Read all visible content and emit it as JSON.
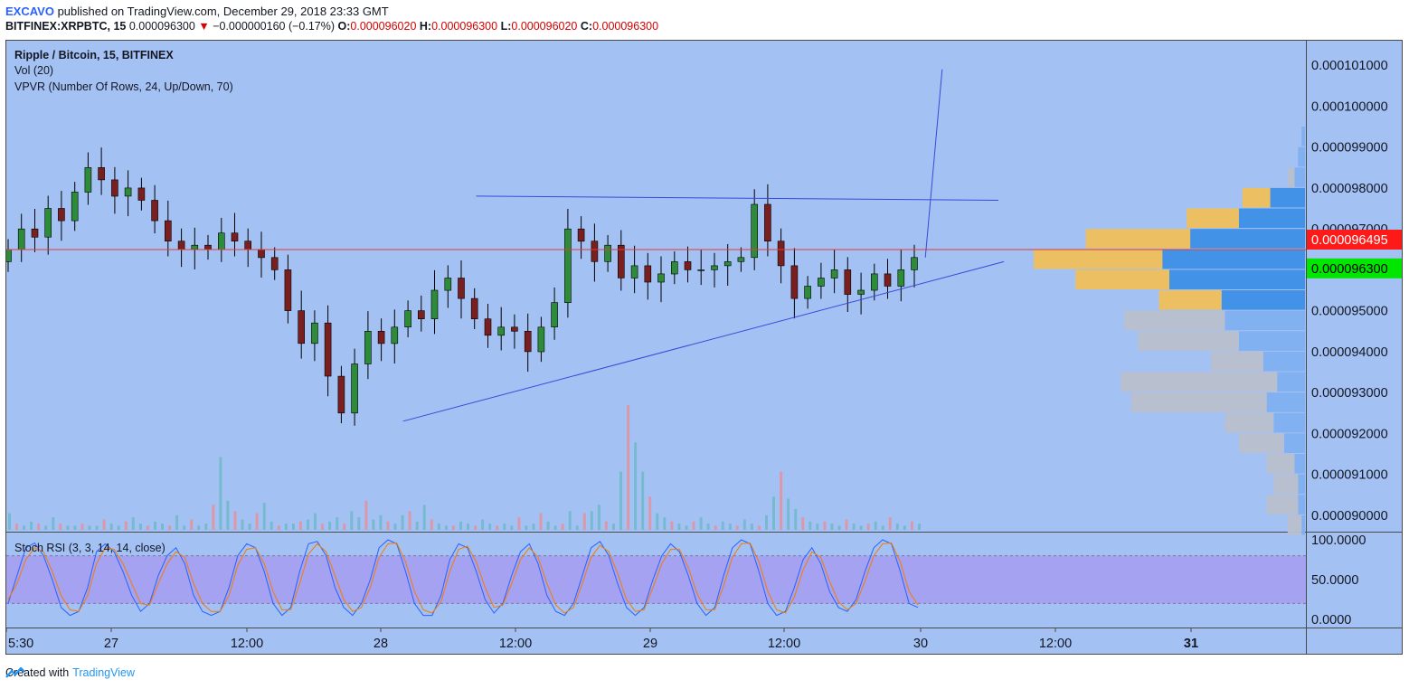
{
  "header": {
    "author": "EXCAVO",
    "published_text": "published on TradingView.com, December 29, 2018 23:33 GMT",
    "symbol": "BITFINEX:XRPBTC, 15",
    "last_price": "0.000096300",
    "change_arrow": "▼",
    "change": "−0.000000160 (−0.17%)",
    "o_label": "O:",
    "o_value": "0.000096020",
    "h_label": "H:",
    "h_value": "0.000096300",
    "l_label": "L:",
    "l_value": "0.000096020",
    "c_label": "C:",
    "c_value": "0.000096300"
  },
  "legend": {
    "main": "Ripple / Bitcoin, 15, BITFINEX",
    "vol": "Vol (20)",
    "vpvr": "VPVR (Number Of Rows, 24, Up/Down, 70)",
    "stoch": "Stoch RSI (3, 3, 14, 14, close)"
  },
  "footer": {
    "created_with": "Created with",
    "brand": "TradingView"
  },
  "colors": {
    "background": "#a4c1f4",
    "up_candle": "#2e8b3a",
    "down_candle": "#7a1f1f",
    "trendline": "#3a49d6",
    "price_line": "#e53935",
    "stoch_band": "#a49cf0",
    "stoch_k": "#2962ff",
    "stoch_d": "#f57c00",
    "vpvr_up": "#3d8fe6",
    "vpvr_down": "#f0c05a",
    "vpvr_grey": "#b9bfcc",
    "last_price_tag": "#00e600",
    "current_line_tag": "#ff1a1a"
  },
  "chart_data": [
    {
      "type": "candlestick",
      "title": "Ripple / Bitcoin, 15, BITFINEX",
      "y_ticks": [
        "0.000101000",
        "0.000100000",
        "0.000099000",
        "0.000098000",
        "0.000097000",
        "0.000096000",
        "0.000095000",
        "0.000094000",
        "0.000093000",
        "0.000092000",
        "0.000091000",
        "0.000090000"
      ],
      "x_ticks": [
        "5:30",
        "27",
        "12:00",
        "28",
        "12:00",
        "29",
        "12:00",
        "30",
        "12:00",
        "31"
      ],
      "ylim": [
        8.96e-05,
        0.0001016
      ],
      "price_tags": [
        {
          "label": "0.000096495",
          "value": 9.6495e-05,
          "role": "horizontal line"
        },
        {
          "label": "0.000096300",
          "value": 9.63e-05,
          "role": "last price"
        }
      ],
      "close_series": [
        9.65e-05,
        9.7e-05,
        9.68e-05,
        9.75e-05,
        9.72e-05,
        9.79e-05,
        9.85e-05,
        9.82e-05,
        9.78e-05,
        9.8e-05,
        9.77e-05,
        9.72e-05,
        9.67e-05,
        9.65e-05,
        9.66e-05,
        9.65e-05,
        9.69e-05,
        9.67e-05,
        9.65e-05,
        9.63e-05,
        9.6e-05,
        9.5e-05,
        9.42e-05,
        9.47e-05,
        9.34e-05,
        9.25e-05,
        9.37e-05,
        9.45e-05,
        9.42e-05,
        9.46e-05,
        9.5e-05,
        9.48e-05,
        9.55e-05,
        9.58e-05,
        9.53e-05,
        9.48e-05,
        9.44e-05,
        9.46e-05,
        9.45e-05,
        9.4e-05,
        9.46e-05,
        9.52e-05,
        9.7e-05,
        9.67e-05,
        9.62e-05,
        9.66e-05,
        9.58e-05,
        9.61e-05,
        9.57e-05,
        9.59e-05,
        9.62e-05,
        9.6e-05,
        9.6e-05,
        9.61e-05,
        9.62e-05,
        9.63e-05,
        9.76e-05,
        9.67e-05,
        9.61e-05,
        9.53e-05,
        9.56e-05,
        9.58e-05,
        9.6e-05,
        9.54e-05,
        9.55e-05,
        9.59e-05,
        9.56e-05,
        9.6e-05,
        9.63e-05
      ],
      "trendlines": [
        {
          "name": "ascending support",
          "from": {
            "x": "28 02:00",
            "y": 9.23e-05
          },
          "to": {
            "x": "30 07:30",
            "y": 9.62e-05
          }
        },
        {
          "name": "resistance",
          "from": {
            "x": "28 08:30",
            "y": 9.78e-05
          },
          "to": {
            "x": "30 07:00",
            "y": 9.77e-05
          }
        },
        {
          "name": "breakout projection",
          "from": {
            "x": "30 00:30",
            "y": 9.63e-05
          },
          "to": {
            "x": "30 02:00",
            "y": 0.0001009
          }
        }
      ]
    },
    {
      "type": "bar",
      "title": "Vol (20)",
      "values": [
        8,
        3,
        2,
        4,
        3,
        2,
        6,
        3,
        2,
        2,
        3,
        2,
        2,
        5,
        3,
        2,
        4,
        6,
        3,
        2,
        4,
        3,
        2,
        7,
        2,
        5,
        2,
        3,
        12,
        35,
        14,
        9,
        5,
        3,
        8,
        13,
        4,
        2,
        3,
        3,
        4,
        5,
        8,
        3,
        4,
        6,
        3,
        9,
        6,
        14,
        5,
        7,
        4,
        3,
        7,
        9,
        4,
        12,
        5,
        3,
        2,
        2,
        4,
        3,
        2,
        5,
        3,
        2,
        3,
        2,
        6,
        2,
        3,
        8,
        4,
        2,
        3,
        9,
        2,
        8,
        9,
        12,
        4,
        3,
        28,
        60,
        42,
        28,
        16,
        8,
        6,
        4,
        3,
        2,
        4,
        6,
        3,
        2,
        4,
        3,
        2,
        5,
        3,
        2,
        7,
        16,
        28,
        15,
        10,
        6,
        4,
        3,
        4,
        3,
        2,
        5,
        3,
        2,
        3,
        4,
        2,
        6,
        3,
        2,
        4,
        3
      ]
    },
    {
      "type": "line",
      "title": "Stoch RSI (3, 3, 14, 14, close)",
      "y_ticks": [
        "100.0000",
        "50.0000",
        "0.0000"
      ],
      "ylim": [
        0,
        100
      ],
      "bands": [
        20,
        80
      ],
      "series": [
        {
          "values": [
            20,
            55,
            90,
            96,
            80,
            50,
            15,
            5,
            10,
            40,
            85,
            95,
            85,
            60,
            30,
            10,
            20,
            55,
            80,
            90,
            70,
            30,
            10,
            5,
            10,
            40,
            80,
            95,
            90,
            60,
            20,
            5,
            15,
            60,
            95,
            98,
            80,
            40,
            15,
            5,
            20,
            50,
            90,
            100,
            95,
            60,
            20,
            5,
            5,
            30,
            75,
            95,
            90,
            60,
            25,
            8,
            20,
            55,
            85,
            95,
            70,
            30,
            10,
            5,
            20,
            55,
            90,
            98,
            80,
            45,
            15,
            5,
            15,
            50,
            80,
            95,
            85,
            55,
            20,
            5,
            15,
            55,
            90,
            100,
            95,
            60,
            20,
            5,
            10,
            40,
            75,
            90,
            70,
            35,
            15,
            10,
            25,
            60,
            90,
            100,
            95,
            60,
            20,
            15
          ]
        },
        {
          "values": [
            25,
            45,
            75,
            90,
            85,
            60,
            30,
            12,
            10,
            30,
            70,
            90,
            88,
            70,
            45,
            20,
            18,
            45,
            70,
            85,
            78,
            45,
            20,
            10,
            10,
            30,
            68,
            88,
            90,
            70,
            35,
            12,
            12,
            45,
            82,
            95,
            85,
            55,
            25,
            10,
            15,
            40,
            78,
            95,
            96,
            72,
            35,
            12,
            8,
            22,
            60,
            88,
            92,
            72,
            40,
            15,
            18,
            45,
            75,
            90,
            78,
            45,
            18,
            8,
            15,
            45,
            78,
            93,
            85,
            58,
            25,
            10,
            12,
            40,
            70,
            88,
            88,
            65,
            32,
            12,
            12,
            42,
            78,
            95,
            96,
            72,
            35,
            12,
            8,
            28,
            62,
            85,
            78,
            48,
            22,
            12,
            20,
            48,
            80,
            95,
            96,
            72,
            35,
            18
          ]
        }
      ]
    },
    {
      "type": "bar",
      "title": "VPVR (Number Of Rows, 24, Up/Down, 70)",
      "note": "horizontal volume profile by price level",
      "levels": [
        {
          "price_from": 9.9e-05,
          "price_to": 9.95e-05,
          "up": 1,
          "down": 0
        },
        {
          "price_from": 9.85e-05,
          "price_to": 9.9e-05,
          "up": 2,
          "down": 0
        },
        {
          "price_from": 9.8e-05,
          "price_to": 9.85e-05,
          "up": 3,
          "down": 2
        },
        {
          "price_from": 9.75e-05,
          "price_to": 9.8e-05,
          "up": 10,
          "down": 8
        },
        {
          "price_from": 9.7e-05,
          "price_to": 9.75e-05,
          "up": 19,
          "down": 15
        },
        {
          "price_from": 9.65e-05,
          "price_to": 9.7e-05,
          "up": 33,
          "down": 30
        },
        {
          "price_from": 9.6e-05,
          "price_to": 9.65e-05,
          "up": 41,
          "down": 37
        },
        {
          "price_from": 9.55e-05,
          "price_to": 9.6e-05,
          "up": 39,
          "down": 27
        },
        {
          "price_from": 9.5e-05,
          "price_to": 9.55e-05,
          "up": 24,
          "down": 18
        },
        {
          "price_from": 9.45e-05,
          "price_to": 9.5e-05,
          "up": 23,
          "down": 29
        },
        {
          "price_from": 9.4e-05,
          "price_to": 9.45e-05,
          "up": 19,
          "down": 29
        },
        {
          "price_from": 9.35e-05,
          "price_to": 9.4e-05,
          "up": 12,
          "down": 15
        },
        {
          "price_from": 9.3e-05,
          "price_to": 9.35e-05,
          "up": 8,
          "down": 45
        },
        {
          "price_from": 9.25e-05,
          "price_to": 9.3e-05,
          "up": 11,
          "down": 39
        },
        {
          "price_from": 9.2e-05,
          "price_to": 9.25e-05,
          "up": 9,
          "down": 14
        },
        {
          "price_from": 9.15e-05,
          "price_to": 9.2e-05,
          "up": 6,
          "down": 13
        },
        {
          "price_from": 9.1e-05,
          "price_to": 9.15e-05,
          "up": 3,
          "down": 8
        },
        {
          "price_from": 9.05e-05,
          "price_to": 9.1e-05,
          "up": 2,
          "down": 7
        },
        {
          "price_from": 9e-05,
          "price_to": 9.05e-05,
          "up": 2,
          "down": 9
        },
        {
          "price_from": 8.95e-05,
          "price_to": 9e-05,
          "up": 1,
          "down": 4
        }
      ]
    }
  ]
}
